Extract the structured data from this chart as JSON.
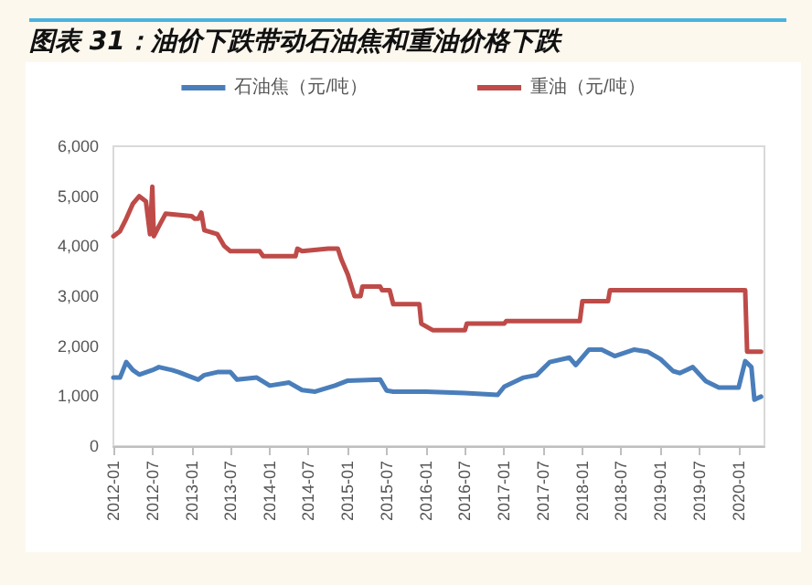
{
  "chart_data": {
    "type": "line",
    "title": "图表 31：油价下跌带动石油焦和重油价格下跌",
    "series": [
      {
        "name": "石油焦（元/吨）",
        "color": "#4a7ebb",
        "x": [
          "2012-01-01",
          "2012-02-01",
          "2012-03-01",
          "2012-04-01",
          "2012-05-01",
          "2012-07-01",
          "2012-08-01",
          "2012-10-01",
          "2012-11-01",
          "2013-02-01",
          "2013-03-01",
          "2013-05-01",
          "2013-07-01",
          "2013-08-01",
          "2013-11-01",
          "2014-01-01",
          "2014-04-01",
          "2014-06-01",
          "2014-08-01",
          "2014-11-01",
          "2015-01-01",
          "2015-06-01",
          "2015-07-01",
          "2015-08-01",
          "2016-01-01",
          "2016-07-01",
          "2016-12-01",
          "2017-01-01",
          "2017-04-01",
          "2017-06-01",
          "2017-08-01",
          "2017-11-01",
          "2017-12-01",
          "2018-02-01",
          "2018-04-01",
          "2018-06-01",
          "2018-09-01",
          "2018-11-01",
          "2019-01-01",
          "2019-03-01",
          "2019-04-01",
          "2019-06-01",
          "2019-08-01",
          "2019-10-01",
          "2020-01-01",
          "2020-02-01",
          "2020-03-01",
          "2020-03-15",
          "2020-04-15"
        ],
        "values": [
          1370,
          1370,
          1680,
          1520,
          1430,
          1520,
          1580,
          1520,
          1480,
          1330,
          1420,
          1480,
          1480,
          1330,
          1370,
          1210,
          1270,
          1120,
          1090,
          1210,
          1310,
          1330,
          1110,
          1090,
          1090,
          1060,
          1025,
          1190,
          1370,
          1420,
          1680,
          1770,
          1620,
          1930,
          1930,
          1800,
          1930,
          1890,
          1740,
          1500,
          1460,
          1580,
          1300,
          1170,
          1170,
          1700,
          1580,
          930,
          990
        ]
      },
      {
        "name": "重油（元/吨）",
        "color": "#be4b48",
        "x": [
          "2012-01-01",
          "2012-02-01",
          "2012-03-01",
          "2012-04-01",
          "2012-05-01",
          "2012-06-01",
          "2012-06-20",
          "2012-07-01",
          "2012-07-08",
          "2012-08-01",
          "2012-09-01",
          "2013-01-01",
          "2013-01-15",
          "2013-02-01",
          "2013-02-15",
          "2013-03-01",
          "2013-05-01",
          "2013-06-01",
          "2013-07-01",
          "2013-11-15",
          "2013-12-01",
          "2014-05-01",
          "2014-05-10",
          "2014-06-01",
          "2014-10-01",
          "2014-11-15",
          "2014-12-01",
          "2015-01-01",
          "2015-02-01",
          "2015-03-01",
          "2015-03-10",
          "2015-06-01",
          "2015-06-10",
          "2015-07-15",
          "2015-08-01",
          "2015-12-01",
          "2015-12-10",
          "2016-02-01",
          "2016-07-01",
          "2016-07-10",
          "2017-01-01",
          "2017-01-10",
          "2017-12-20",
          "2018-01-01",
          "2018-05-01",
          "2018-05-10",
          "2020-02-01",
          "2020-02-10",
          "2020-04-15"
        ],
        "values": [
          4200,
          4300,
          4550,
          4850,
          5000,
          4900,
          4240,
          5190,
          4200,
          4400,
          4650,
          4600,
          4550,
          4550,
          4670,
          4320,
          4240,
          4010,
          3900,
          3900,
          3800,
          3800,
          3950,
          3900,
          3950,
          3950,
          3740,
          3430,
          3000,
          3000,
          3190,
          3190,
          3120,
          3120,
          2840,
          2840,
          2450,
          2320,
          2320,
          2450,
          2450,
          2500,
          2500,
          2900,
          2900,
          3120,
          3120,
          1890,
          1890
        ]
      }
    ],
    "xlim": [
      "2012-01-01",
      "2020-05-01"
    ],
    "xticks": [
      "2012-01",
      "2012-07",
      "2013-01",
      "2013-07",
      "2014-01",
      "2014-07",
      "2015-01",
      "2015-07",
      "2016-01",
      "2016-07",
      "2017-01",
      "2017-07",
      "2018-01",
      "2018-07",
      "2019-01",
      "2019-07",
      "2020-01"
    ],
    "ylim": [
      0,
      6000
    ],
    "yticks": [
      0,
      {
        "value": 1000,
        "label": "1,000"
      },
      {
        "value": 2000,
        "label": "2,000"
      },
      {
        "value": 3000,
        "label": "3,000"
      },
      {
        "value": 4000,
        "label": "4,000"
      },
      {
        "value": 5000,
        "label": "5,000"
      },
      {
        "value": 6000,
        "label": "6,000"
      }
    ],
    "grid": false,
    "legend": "top",
    "marker": "none",
    "line_style": "solid"
  }
}
